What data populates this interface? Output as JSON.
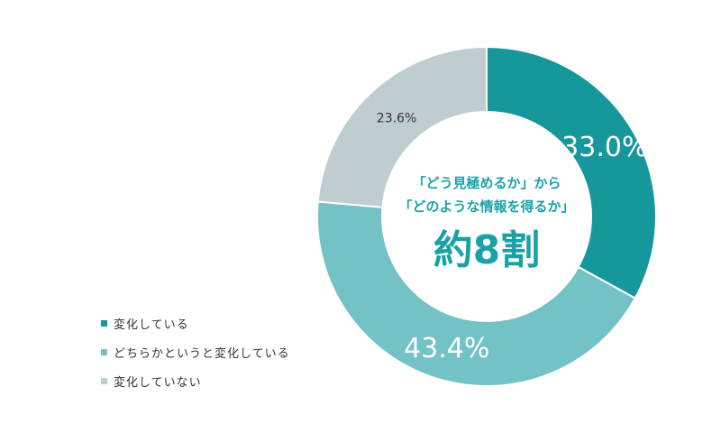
{
  "chart_data": {
    "type": "pie",
    "donut": true,
    "title": "",
    "center_text": {
      "line1": "「どう見極めるか」から",
      "line2": "「どのような情報を得るか」",
      "line3": "約8割"
    },
    "categories": [
      "変化している",
      "どちらかというと変化している",
      "変化していない"
    ],
    "values": [
      33.0,
      43.4,
      23.6
    ],
    "value_labels": [
      "33.0%",
      "43.4%",
      "23.6%"
    ],
    "colors": [
      "#16979c",
      "#73c2c6",
      "#c0cdd0"
    ],
    "legend": "bottom-left",
    "start_angle_deg": 0,
    "direction": "clockwise"
  }
}
